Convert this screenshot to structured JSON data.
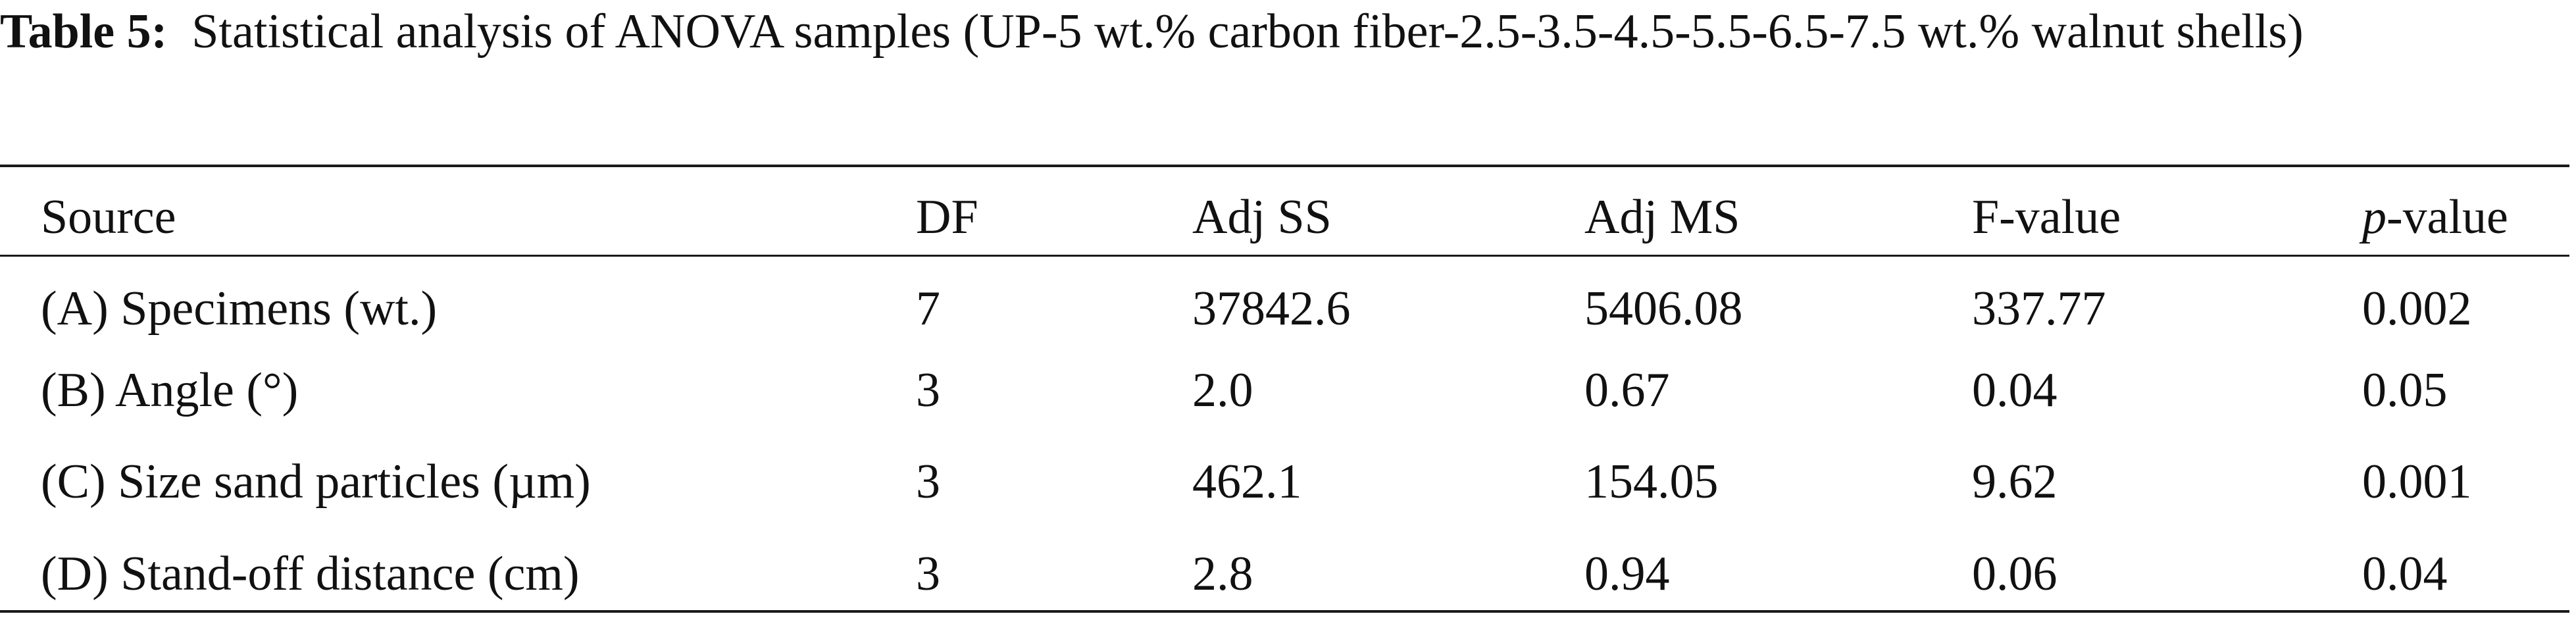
{
  "caption": {
    "label": "Table 5:",
    "text": "Statistical analysis of ANOVA samples (UP-5 wt.% carbon fiber-2.5-3.5-4.5-5.5-6.5-7.5 wt.% walnut shells)"
  },
  "table": {
    "headers": {
      "source": "Source",
      "df": "DF",
      "adj_ss": "Adj SS",
      "adj_ms": "Adj MS",
      "f_value": "F-value",
      "p_value_italic": "p",
      "p_value_rest": "-value"
    },
    "rows": [
      {
        "source": "(A) Specimens (wt.)",
        "df": "7",
        "adj_ss": "37842.6",
        "adj_ms": "5406.08",
        "f_value": "337.77",
        "p_value": "0.002"
      },
      {
        "source": "(B) Angle (°)",
        "df": "3",
        "adj_ss": "2.0",
        "adj_ms": "0.67",
        "f_value": "0.04",
        "p_value": "0.05"
      },
      {
        "source": "(C) Size sand particles (µm)",
        "df": "3",
        "adj_ss": "462.1",
        "adj_ms": "154.05",
        "f_value": "9.62",
        "p_value": "0.001"
      },
      {
        "source": "(D) Stand-off distance (cm)",
        "df": "3",
        "adj_ss": "2.8",
        "adj_ms": "0.94",
        "f_value": "0.06",
        "p_value": "0.04"
      }
    ]
  }
}
